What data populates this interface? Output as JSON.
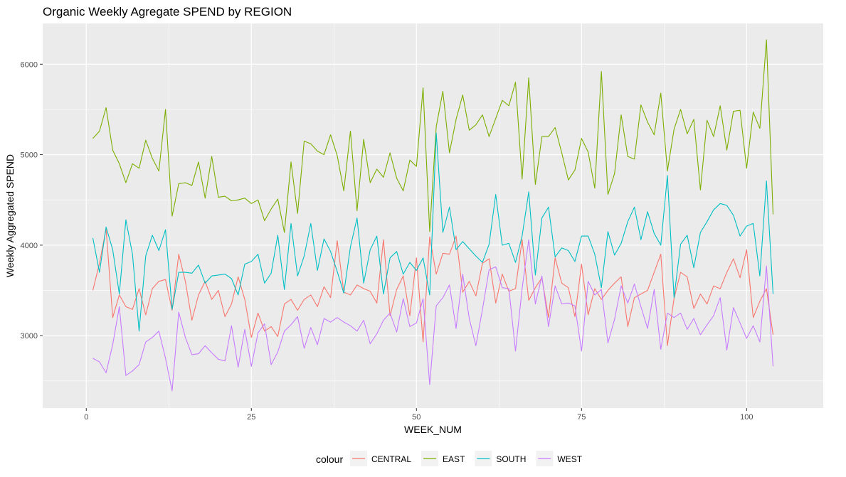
{
  "chart_data": {
    "type": "line",
    "title": "Organic Weekly Agregate SPEND by REGION",
    "xlabel": "WEEK_NUM",
    "ylabel": "Weekly Aggregated SPEND",
    "xlim": [
      -6.6,
      111.6
    ],
    "ylim": [
      2200,
      6450
    ],
    "x_ticks": [
      0,
      25,
      50,
      75,
      100
    ],
    "y_ticks": [
      3000,
      4000,
      5000,
      6000
    ],
    "grid": true,
    "background": "#ebebeb",
    "legend": {
      "title": "colour",
      "position": "bottom"
    },
    "series": [
      {
        "name": "CENTRAL",
        "color": "#f8766d",
        "x": [
          1,
          2,
          3,
          4,
          5,
          6,
          7,
          8,
          9,
          10,
          11,
          12,
          13,
          14,
          15,
          16,
          17,
          18,
          19,
          20,
          21,
          22,
          23,
          24,
          25,
          26,
          27,
          28,
          29,
          30,
          31,
          32,
          33,
          34,
          35,
          36,
          37,
          38,
          39,
          40,
          41,
          42,
          43,
          44,
          45,
          46,
          47,
          48,
          49,
          50,
          51,
          52,
          53,
          54,
          55,
          56,
          57,
          58,
          59,
          60,
          61,
          62,
          63,
          64,
          65,
          66,
          67,
          68,
          69,
          70,
          71,
          72,
          73,
          74,
          75,
          76,
          77,
          78,
          79,
          80,
          81,
          82,
          83,
          84,
          85,
          86,
          87,
          88,
          89,
          90,
          91,
          92,
          93,
          94,
          95,
          96,
          97,
          98,
          99,
          100,
          101,
          102,
          103,
          104
        ],
        "values": [
          3500,
          3800,
          4180,
          3200,
          3450,
          3320,
          3290,
          3520,
          3230,
          3520,
          3600,
          3620,
          3280,
          3900,
          3600,
          3170,
          3450,
          3600,
          3400,
          3500,
          3210,
          3350,
          3650,
          3400,
          2980,
          3250,
          3050,
          3100,
          2990,
          3350,
          3400,
          3280,
          3400,
          3450,
          3320,
          3540,
          3420,
          4050,
          3480,
          3450,
          3560,
          3520,
          3490,
          3360,
          4060,
          3220,
          3510,
          3660,
          3220,
          3860,
          2930,
          4090,
          3680,
          3910,
          3900,
          4100,
          3480,
          3600,
          3440,
          3800,
          3850,
          3360,
          3680,
          3490,
          3520,
          4060,
          3390,
          3530,
          3640,
          3200,
          3860,
          3580,
          3530,
          3210,
          3790,
          3230,
          3520,
          3400,
          3500,
          3580,
          3650,
          3100,
          3420,
          3460,
          3500,
          3700,
          3900,
          2890,
          3410,
          3700,
          3650,
          3300,
          3460,
          3350,
          3550,
          3520,
          3700,
          3850,
          3640,
          3950,
          3200,
          3380,
          3520,
          3010
        ]
      },
      {
        "name": "EAST",
        "color": "#7cae00",
        "x": [
          1,
          2,
          3,
          4,
          5,
          6,
          7,
          8,
          9,
          10,
          11,
          12,
          13,
          14,
          15,
          16,
          17,
          18,
          19,
          20,
          21,
          22,
          23,
          24,
          25,
          26,
          27,
          28,
          29,
          30,
          31,
          32,
          33,
          34,
          35,
          36,
          37,
          38,
          39,
          40,
          41,
          42,
          43,
          44,
          45,
          46,
          47,
          48,
          49,
          50,
          51,
          52,
          53,
          54,
          55,
          56,
          57,
          58,
          59,
          60,
          61,
          62,
          63,
          64,
          65,
          66,
          67,
          68,
          69,
          70,
          71,
          72,
          73,
          74,
          75,
          76,
          77,
          78,
          79,
          80,
          81,
          82,
          83,
          84,
          85,
          86,
          87,
          88,
          89,
          90,
          91,
          92,
          93,
          94,
          95,
          96,
          97,
          98,
          99,
          100,
          101,
          102,
          103,
          104
        ],
        "values": [
          5180,
          5260,
          5520,
          5050,
          4900,
          4690,
          4900,
          4850,
          5160,
          4960,
          4820,
          5500,
          4320,
          4680,
          4690,
          4660,
          4920,
          4520,
          4980,
          4530,
          4540,
          4490,
          4500,
          4520,
          4460,
          4500,
          4270,
          4400,
          4510,
          4140,
          4920,
          4350,
          5150,
          5120,
          5040,
          5000,
          5220,
          4990,
          4600,
          5260,
          4380,
          5170,
          4690,
          4840,
          4750,
          5020,
          4740,
          4600,
          4940,
          4870,
          5740,
          4150,
          5310,
          5700,
          5020,
          5390,
          5660,
          5270,
          5330,
          5440,
          5200,
          5400,
          5600,
          5540,
          5800,
          4730,
          5850,
          4670,
          5200,
          5200,
          5300,
          5020,
          4720,
          4830,
          5180,
          5030,
          4630,
          5920,
          4560,
          4790,
          5440,
          4980,
          4950,
          5550,
          5360,
          5220,
          5680,
          4820,
          5280,
          5500,
          5230,
          5390,
          4610,
          5380,
          5200,
          5540,
          5050,
          5480,
          5490,
          4850,
          5470,
          5290,
          6270,
          4340
        ]
      },
      {
        "name": "SOUTH",
        "color": "#00bfc4",
        "x": [
          1,
          2,
          3,
          4,
          5,
          6,
          7,
          8,
          9,
          10,
          11,
          12,
          13,
          14,
          15,
          16,
          17,
          18,
          19,
          20,
          21,
          22,
          23,
          24,
          25,
          26,
          27,
          28,
          29,
          30,
          31,
          32,
          33,
          34,
          35,
          36,
          37,
          38,
          39,
          40,
          41,
          42,
          43,
          44,
          45,
          46,
          47,
          48,
          49,
          50,
          51,
          52,
          53,
          54,
          55,
          56,
          57,
          58,
          59,
          60,
          61,
          62,
          63,
          64,
          65,
          66,
          67,
          68,
          69,
          70,
          71,
          72,
          73,
          74,
          75,
          76,
          77,
          78,
          79,
          80,
          81,
          82,
          83,
          84,
          85,
          86,
          87,
          88,
          89,
          90,
          91,
          92,
          93,
          94,
          95,
          96,
          97,
          98,
          99,
          100,
          101,
          102,
          103,
          104
        ],
        "values": [
          4080,
          3700,
          4200,
          3950,
          3460,
          4280,
          3900,
          3050,
          3880,
          4110,
          3940,
          4170,
          3290,
          3700,
          3700,
          3690,
          3780,
          3580,
          3660,
          3670,
          3680,
          3630,
          3450,
          3790,
          3820,
          3900,
          3580,
          3690,
          4110,
          3510,
          4240,
          3660,
          3880,
          4240,
          3720,
          4070,
          3930,
          3710,
          3470,
          3980,
          4300,
          3580,
          3950,
          4100,
          3460,
          3860,
          3930,
          3680,
          3810,
          3720,
          3860,
          3450,
          5240,
          4140,
          4420,
          3950,
          4040,
          3960,
          3880,
          3810,
          4010,
          4560,
          4000,
          4020,
          3810,
          4100,
          4590,
          3670,
          4300,
          4420,
          3870,
          3970,
          3940,
          3820,
          4100,
          4100,
          3900,
          3530,
          4150,
          3890,
          4020,
          4260,
          4420,
          4060,
          4370,
          4130,
          4000,
          4770,
          3420,
          4010,
          4110,
          3750,
          4140,
          4260,
          4390,
          4460,
          4440,
          4330,
          4100,
          4210,
          4240,
          3660,
          4710,
          3460
        ]
      },
      {
        "name": "WEST",
        "color": "#c77cff",
        "x": [
          1,
          2,
          3,
          4,
          5,
          6,
          7,
          8,
          9,
          10,
          11,
          12,
          13,
          14,
          15,
          16,
          17,
          18,
          19,
          20,
          21,
          22,
          23,
          24,
          25,
          26,
          27,
          28,
          29,
          30,
          31,
          32,
          33,
          34,
          35,
          36,
          37,
          38,
          39,
          40,
          41,
          42,
          43,
          44,
          45,
          46,
          47,
          48,
          49,
          50,
          51,
          52,
          53,
          54,
          55,
          56,
          57,
          58,
          59,
          60,
          61,
          62,
          63,
          64,
          65,
          66,
          67,
          68,
          69,
          70,
          71,
          72,
          73,
          74,
          75,
          76,
          77,
          78,
          79,
          80,
          81,
          82,
          83,
          84,
          85,
          86,
          87,
          88,
          89,
          90,
          91,
          92,
          93,
          94,
          95,
          96,
          97,
          98,
          99,
          100,
          101,
          102,
          103,
          104
        ],
        "values": [
          2750,
          2710,
          2590,
          2900,
          3320,
          2560,
          2610,
          2680,
          2930,
          2980,
          3050,
          2750,
          2390,
          3260,
          2980,
          2790,
          2800,
          2890,
          2810,
          2740,
          2720,
          3110,
          2650,
          3070,
          2660,
          3030,
          3130,
          2680,
          2820,
          3050,
          3120,
          3210,
          2860,
          3090,
          2900,
          3190,
          3150,
          3200,
          3150,
          3110,
          3050,
          3170,
          2910,
          3020,
          3170,
          3250,
          3040,
          3410,
          3100,
          3140,
          3410,
          2460,
          3330,
          3420,
          3560,
          3080,
          3680,
          3190,
          2890,
          3290,
          3730,
          3760,
          3530,
          3520,
          2830,
          3520,
          4060,
          3350,
          3660,
          3100,
          3550,
          3350,
          3360,
          3330,
          2830,
          3600,
          3450,
          3510,
          2920,
          3180,
          3550,
          3360,
          3570,
          3320,
          3080,
          3510,
          2850,
          3250,
          3200,
          3250,
          3070,
          3190,
          3010,
          3120,
          3220,
          3420,
          2840,
          3310,
          3140,
          2970,
          3110,
          2930,
          3770,
          2660
        ]
      }
    ]
  }
}
